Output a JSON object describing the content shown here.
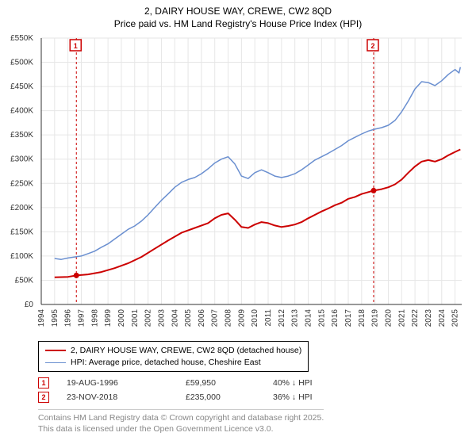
{
  "title_line1": "2, DAIRY HOUSE WAY, CREWE, CW2 8QD",
  "title_line2": "Price paid vs. HM Land Registry's House Price Index (HPI)",
  "title_fontsize": 12,
  "chart": {
    "type": "line",
    "background_color": "#ffffff",
    "plot_bg_color": "#ffffff",
    "grid_color": "#e6e6e6",
    "axis_color": "#333333",
    "tick_font_size": 10,
    "x": {
      "min": 1994,
      "max": 2025.5,
      "ticks": [
        1994,
        1995,
        1996,
        1997,
        1998,
        1999,
        2000,
        2001,
        2002,
        2003,
        2004,
        2005,
        2006,
        2007,
        2008,
        2009,
        2010,
        2011,
        2012,
        2013,
        2014,
        2015,
        2016,
        2017,
        2018,
        2019,
        2020,
        2021,
        2022,
        2023,
        2024,
        2025
      ],
      "label_rotation": -90
    },
    "y": {
      "min": 0,
      "max": 550000,
      "ticks": [
        0,
        50000,
        100000,
        150000,
        200000,
        250000,
        300000,
        350000,
        400000,
        450000,
        500000,
        550000
      ],
      "tick_labels": [
        "£0",
        "£50K",
        "£100K",
        "£150K",
        "£200K",
        "£250K",
        "£300K",
        "£350K",
        "£400K",
        "£450K",
        "£500K",
        "£550K"
      ]
    },
    "marker_lines": [
      {
        "x": 1996.63,
        "label": "1",
        "color": "#cc0000"
      },
      {
        "x": 2018.9,
        "label": "2",
        "color": "#cc0000"
      }
    ],
    "marker_badge_y_offset": 18,
    "series": [
      {
        "name": "price_paid",
        "legend": "2, DAIRY HOUSE WAY, CREWE, CW2 8QD (detached house)",
        "color": "#cc0000",
        "line_width": 2,
        "points": [
          [
            1995.0,
            56000
          ],
          [
            1996.0,
            57000
          ],
          [
            1996.63,
            59950
          ],
          [
            1997.5,
            62000
          ],
          [
            1998.5,
            67000
          ],
          [
            1999.5,
            75000
          ],
          [
            2000.5,
            85000
          ],
          [
            2001.5,
            98000
          ],
          [
            2002.5,
            115000
          ],
          [
            2003.5,
            132000
          ],
          [
            2004.5,
            148000
          ],
          [
            2005.5,
            158000
          ],
          [
            2006.5,
            168000
          ],
          [
            2007.0,
            178000
          ],
          [
            2007.5,
            185000
          ],
          [
            2008.0,
            188000
          ],
          [
            2008.5,
            175000
          ],
          [
            2009.0,
            160000
          ],
          [
            2009.5,
            158000
          ],
          [
            2010.0,
            165000
          ],
          [
            2010.5,
            170000
          ],
          [
            2011.0,
            168000
          ],
          [
            2011.5,
            163000
          ],
          [
            2012.0,
            160000
          ],
          [
            2012.5,
            162000
          ],
          [
            2013.0,
            165000
          ],
          [
            2013.5,
            170000
          ],
          [
            2014.0,
            178000
          ],
          [
            2014.5,
            185000
          ],
          [
            2015.0,
            192000
          ],
          [
            2015.5,
            198000
          ],
          [
            2016.0,
            205000
          ],
          [
            2016.5,
            210000
          ],
          [
            2017.0,
            218000
          ],
          [
            2017.5,
            222000
          ],
          [
            2018.0,
            228000
          ],
          [
            2018.5,
            232000
          ],
          [
            2018.9,
            235000
          ],
          [
            2019.5,
            238000
          ],
          [
            2020.0,
            242000
          ],
          [
            2020.5,
            248000
          ],
          [
            2021.0,
            258000
          ],
          [
            2021.5,
            272000
          ],
          [
            2022.0,
            285000
          ],
          [
            2022.5,
            295000
          ],
          [
            2023.0,
            298000
          ],
          [
            2023.5,
            295000
          ],
          [
            2024.0,
            300000
          ],
          [
            2024.5,
            308000
          ],
          [
            2025.0,
            315000
          ],
          [
            2025.4,
            320000
          ]
        ],
        "dots": [
          {
            "x": 1996.63,
            "y": 59950
          },
          {
            "x": 2018.9,
            "y": 235000
          }
        ]
      },
      {
        "name": "hpi",
        "legend": "HPI: Average price, detached house, Cheshire East",
        "color": "#6a8fd0",
        "line_width": 1.5,
        "points": [
          [
            1995.0,
            95000
          ],
          [
            1995.5,
            93000
          ],
          [
            1996.0,
            96000
          ],
          [
            1996.5,
            98000
          ],
          [
            1997.0,
            100000
          ],
          [
            1997.5,
            105000
          ],
          [
            1998.0,
            110000
          ],
          [
            1998.5,
            118000
          ],
          [
            1999.0,
            125000
          ],
          [
            1999.5,
            135000
          ],
          [
            2000.0,
            145000
          ],
          [
            2000.5,
            155000
          ],
          [
            2001.0,
            162000
          ],
          [
            2001.5,
            172000
          ],
          [
            2002.0,
            185000
          ],
          [
            2002.5,
            200000
          ],
          [
            2003.0,
            215000
          ],
          [
            2003.5,
            228000
          ],
          [
            2004.0,
            242000
          ],
          [
            2004.5,
            252000
          ],
          [
            2005.0,
            258000
          ],
          [
            2005.5,
            262000
          ],
          [
            2006.0,
            270000
          ],
          [
            2006.5,
            280000
          ],
          [
            2007.0,
            292000
          ],
          [
            2007.5,
            300000
          ],
          [
            2008.0,
            305000
          ],
          [
            2008.5,
            290000
          ],
          [
            2009.0,
            265000
          ],
          [
            2009.5,
            260000
          ],
          [
            2010.0,
            272000
          ],
          [
            2010.5,
            278000
          ],
          [
            2011.0,
            272000
          ],
          [
            2011.5,
            265000
          ],
          [
            2012.0,
            262000
          ],
          [
            2012.5,
            265000
          ],
          [
            2013.0,
            270000
          ],
          [
            2013.5,
            278000
          ],
          [
            2014.0,
            288000
          ],
          [
            2014.5,
            298000
          ],
          [
            2015.0,
            305000
          ],
          [
            2015.5,
            312000
          ],
          [
            2016.0,
            320000
          ],
          [
            2016.5,
            328000
          ],
          [
            2017.0,
            338000
          ],
          [
            2017.5,
            345000
          ],
          [
            2018.0,
            352000
          ],
          [
            2018.5,
            358000
          ],
          [
            2019.0,
            362000
          ],
          [
            2019.5,
            365000
          ],
          [
            2020.0,
            370000
          ],
          [
            2020.5,
            380000
          ],
          [
            2021.0,
            398000
          ],
          [
            2021.5,
            420000
          ],
          [
            2022.0,
            445000
          ],
          [
            2022.5,
            460000
          ],
          [
            2023.0,
            458000
          ],
          [
            2023.5,
            452000
          ],
          [
            2024.0,
            462000
          ],
          [
            2024.5,
            475000
          ],
          [
            2025.0,
            485000
          ],
          [
            2025.3,
            478000
          ],
          [
            2025.4,
            490000
          ]
        ]
      }
    ]
  },
  "legend": {
    "border_color": "#000000",
    "items": [
      {
        "color": "#cc0000",
        "width": 2,
        "label": "2, DAIRY HOUSE WAY, CREWE, CW2 8QD (detached house)"
      },
      {
        "color": "#6a8fd0",
        "width": 1.5,
        "label": "HPI: Average price, detached house, Cheshire East"
      }
    ]
  },
  "marker_rows": [
    {
      "badge": "1",
      "badge_color": "#cc0000",
      "date": "19-AUG-1996",
      "price": "£59,950",
      "delta": "40% ↓ HPI"
    },
    {
      "badge": "2",
      "badge_color": "#cc0000",
      "date": "23-NOV-2018",
      "price": "£235,000",
      "delta": "36% ↓ HPI"
    }
  ],
  "footer": {
    "line1": "Contains HM Land Registry data © Crown copyright and database right 2025.",
    "line2": "This data is licensed under the Open Government Licence v3.0.",
    "color": "#888888"
  }
}
